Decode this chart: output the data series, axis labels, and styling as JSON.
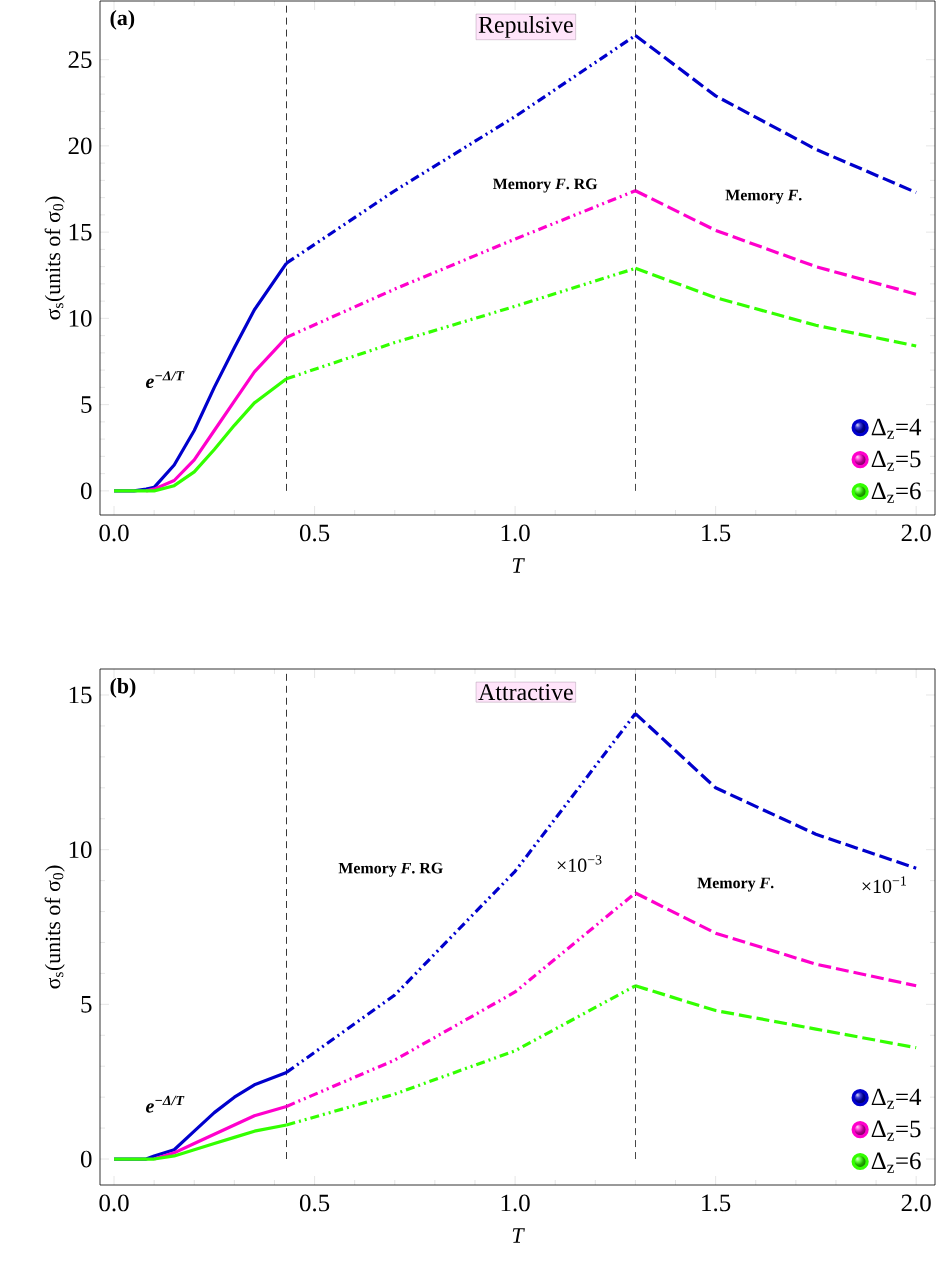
{
  "chart_data": [
    {
      "type": "line",
      "title": "Repulsive",
      "xlabel": "T",
      "ylabel": "σ$_{s}$(units of σ$_{0}$)",
      "xlim": [
        -0.035,
        2.047
      ],
      "ylim": [
        -1.4,
        28.4
      ],
      "xticks": [
        {
          "value": 0,
          "label": "0.0"
        },
        {
          "value": 0.5,
          "label": "0.5"
        },
        {
          "value": 1,
          "label": "1.0"
        },
        {
          "value": 1.5,
          "label": "1.5"
        },
        {
          "value": 2,
          "label": "2.0"
        }
      ],
      "yticks": [
        0,
        5,
        10,
        15,
        20,
        25
      ],
      "legend": "bottom right",
      "series": [
        {
          "name": "Δ$_{z}$=4",
          "color": "#0000cc",
          "line_style": "solid",
          "x": [
            0,
            0.05,
            0.08,
            0.1,
            0.15,
            0.2,
            0.25,
            0.3,
            0.35,
            0.43
          ],
          "values": [
            0,
            0,
            0.1,
            0.2,
            1.5,
            3.5,
            6,
            8.3,
            10.5,
            13.2
          ]
        },
        {
          "name": "Δ$_{z}$=5",
          "color": "#ff00cc",
          "line_style": "solid",
          "x": [
            0.08,
            0.1,
            0.15,
            0.2,
            0.25,
            0.3,
            0.35,
            0.43
          ],
          "values": [
            0,
            0.1,
            0.6,
            1.8,
            3.5,
            5.2,
            6.9,
            8.9
          ]
        },
        {
          "name": "Δ$_{z}$=6",
          "color": "#33ff00",
          "line_style": "solid",
          "x": [
            0,
            0.05,
            0.08,
            0.1,
            0.15,
            0.2,
            0.25,
            0.3,
            0.35,
            0.43
          ],
          "values": [
            0,
            0,
            0,
            0,
            0.3,
            1.1,
            2.4,
            3.8,
            5.1,
            6.5
          ]
        },
        {
          "color": "#0000cc",
          "line_style": "dotted",
          "x": [
            0.43,
            0.7,
            1.0,
            1.3
          ],
          "values": [
            13.2,
            17.4,
            21.7,
            26.4
          ]
        },
        {
          "color": "#ff00cc",
          "line_style": "dotted",
          "x": [
            0.43,
            0.7,
            1.0,
            1.3
          ],
          "values": [
            8.9,
            11.7,
            14.6,
            17.4
          ]
        },
        {
          "color": "#33ff00",
          "line_style": "dotted",
          "x": [
            0.43,
            0.7,
            1.0,
            1.3
          ],
          "values": [
            6.5,
            8.6,
            10.7,
            12.9
          ]
        },
        {
          "color": "#0000cc",
          "line_style": "dashed",
          "x": [
            1.3,
            1.5,
            1.75,
            2.0
          ],
          "values": [
            26.4,
            22.9,
            19.8,
            17.3
          ]
        },
        {
          "color": "#ff00cc",
          "line_style": "dashed",
          "x": [
            1.3,
            1.5,
            1.75,
            2.0
          ],
          "values": [
            17.4,
            15.1,
            13.0,
            11.4
          ]
        },
        {
          "color": "#33ff00",
          "line_style": "dashed",
          "x": [
            1.3,
            1.5,
            1.75,
            2.0
          ],
          "values": [
            12.9,
            11.2,
            9.6,
            8.4
          ]
        }
      ],
      "ref_lines": [
        {
          "axis": "x",
          "value": 0.43,
          "color": "#000000",
          "line_style": "dashed"
        },
        {
          "axis": "x",
          "value": 1.3,
          "color": "#000000",
          "line_style": "dashed"
        }
      ],
      "annotations": [
        "(a)",
        "Memory *F*. RG",
        "Memory *F*.",
        "e$^{−Δ/T}$"
      ]
    },
    {
      "type": "line",
      "title": "Attractive",
      "xlabel": "T",
      "ylabel": "σ$_{s}$(units of σ$_{0}$)",
      "xlim": [
        -0.035,
        2.047
      ],
      "ylim": [
        -0.84,
        15.84
      ],
      "xticks": [
        {
          "value": 0,
          "label": "0.0"
        },
        {
          "value": 0.5,
          "label": "0.5"
        },
        {
          "value": 1,
          "label": "1.0"
        },
        {
          "value": 1.5,
          "label": "1.5"
        },
        {
          "value": 2,
          "label": "2.0"
        }
      ],
      "yticks": [
        0,
        5,
        10,
        15
      ],
      "legend": "bottom right",
      "series": [
        {
          "name": "Δ$_{z}$=4",
          "color": "#0000cc",
          "line_style": "solid",
          "x": [
            0,
            0.05,
            0.08,
            0.1,
            0.15,
            0.2,
            0.25,
            0.3,
            0.35,
            0.43
          ],
          "values": [
            0,
            0,
            0,
            0.1,
            0.3,
            0.9,
            1.5,
            2.0,
            2.4,
            2.8
          ]
        },
        {
          "name": "Δ$_{z}$=5",
          "color": "#ff00cc",
          "line_style": "solid",
          "x": [
            0.1,
            0.15,
            0.2,
            0.25,
            0.3,
            0.35,
            0.43
          ],
          "values": [
            0,
            0.2,
            0.5,
            0.8,
            1.1,
            1.4,
            1.7
          ]
        },
        {
          "name": "Δ$_{z}$=6",
          "color": "#33ff00",
          "line_style": "solid",
          "x": [
            0,
            0.05,
            0.08,
            0.1,
            0.15,
            0.2,
            0.25,
            0.3,
            0.35,
            0.43
          ],
          "values": [
            0,
            0,
            0,
            0,
            0.1,
            0.3,
            0.5,
            0.7,
            0.9,
            1.1
          ]
        },
        {
          "color": "#0000cc",
          "line_style": "dotted",
          "x": [
            0.43,
            0.7,
            1.0,
            1.3
          ],
          "values": [
            2.8,
            5.3,
            9.3,
            14.4
          ]
        },
        {
          "color": "#ff00cc",
          "line_style": "dotted",
          "x": [
            0.43,
            0.7,
            1.0,
            1.3
          ],
          "values": [
            1.7,
            3.2,
            5.4,
            8.6
          ]
        },
        {
          "color": "#33ff00",
          "line_style": "dotted",
          "x": [
            0.43,
            0.7,
            1.0,
            1.3
          ],
          "values": [
            1.1,
            2.1,
            3.5,
            5.6
          ]
        },
        {
          "color": "#0000cc",
          "line_style": "dashed",
          "x": [
            1.3,
            1.5,
            1.75,
            2.0
          ],
          "values": [
            14.4,
            12.0,
            10.5,
            9.4
          ]
        },
        {
          "color": "#ff00cc",
          "line_style": "dashed",
          "x": [
            1.3,
            1.5,
            1.75,
            2.0
          ],
          "values": [
            8.6,
            7.3,
            6.3,
            5.6
          ]
        },
        {
          "color": "#33ff00",
          "line_style": "dashed",
          "x": [
            1.3,
            1.5,
            1.75,
            2.0
          ],
          "values": [
            5.6,
            4.8,
            4.2,
            3.6
          ]
        }
      ],
      "ref_lines": [
        {
          "axis": "x",
          "value": 0.43,
          "color": "#000000",
          "line_style": "dashed"
        },
        {
          "axis": "x",
          "value": 1.3,
          "color": "#000000",
          "line_style": "dashed"
        }
      ],
      "annotations": [
        "(b)",
        "Memory *F*. RG",
        "×10$^{−3}$",
        "Memory *F*.",
        "×10$^{−1}$",
        "e$^{−Δ/T}$"
      ]
    }
  ]
}
